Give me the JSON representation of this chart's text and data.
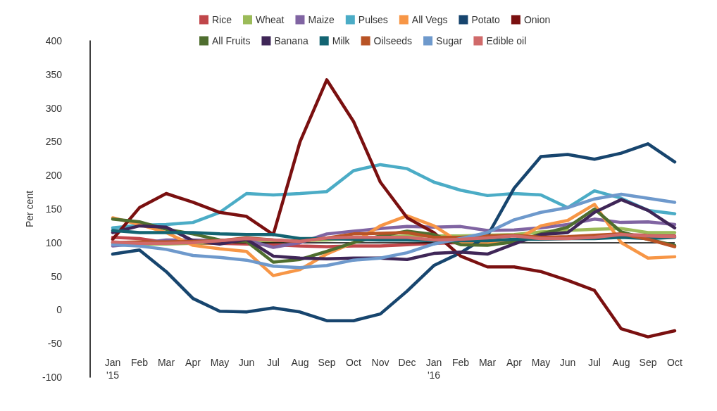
{
  "chart_data": {
    "type": "line",
    "ylabel": "Per cent",
    "categories": [
      "Jan\n'15",
      "Feb",
      "Mar",
      "Apr",
      "May",
      "Jun",
      "Jul",
      "Aug",
      "Sep",
      "Oct",
      "Nov",
      "Dec",
      "Jan\n'16",
      "Feb",
      "Mar",
      "Apr",
      "May",
      "Jun",
      "Jul",
      "Aug",
      "Sep",
      "Oct"
    ],
    "ylim": [
      -100,
      400
    ],
    "yticks": [
      -100,
      -50,
      0,
      50,
      100,
      150,
      200,
      250,
      300,
      350,
      400
    ],
    "grid": false,
    "legend": "top",
    "marker": "none",
    "line_style": "solid",
    "ref_lines": [
      {
        "axis": "y",
        "value": 100,
        "color": "#000000"
      }
    ],
    "series": [
      {
        "name": "Rice",
        "color": "#c0464a",
        "values": [
          108,
          106,
          100,
          99,
          99,
          98,
          97,
          95,
          94,
          95,
          95,
          97,
          99,
          100,
          102,
          104,
          106,
          108,
          110,
          112,
          111,
          110
        ]
      },
      {
        "name": "Wheat",
        "color": "#9bbb59",
        "values": [
          100,
          98,
          98,
          99,
          100,
          102,
          102,
          103,
          104,
          107,
          108,
          110,
          110,
          110,
          111,
          112,
          116,
          118,
          120,
          121,
          115,
          115
        ]
      },
      {
        "name": "Maize",
        "color": "#8064a2",
        "values": [
          95,
          99,
          104,
          104,
          103,
          104,
          93,
          100,
          113,
          117,
          121,
          124,
          123,
          124,
          118,
          119,
          122,
          127,
          135,
          130,
          131,
          127
        ]
      },
      {
        "name": "Pulses",
        "color": "#4bacc6",
        "values": [
          122,
          126,
          127,
          130,
          145,
          173,
          171,
          173,
          176,
          207,
          216,
          210,
          190,
          178,
          170,
          173,
          171,
          152,
          177,
          166,
          148,
          143
        ]
      },
      {
        "name": "All Vegs",
        "color": "#f79646",
        "values": [
          137,
          127,
          115,
          96,
          91,
          87,
          51,
          60,
          83,
          100,
          125,
          140,
          125,
          100,
          100,
          103,
          125,
          133,
          157,
          100,
          77,
          79
        ]
      },
      {
        "name": "Potato",
        "color": "#17456e",
        "values": [
          83,
          89,
          57,
          17,
          -2,
          -3,
          3,
          -3,
          -16,
          -16,
          -6,
          28,
          66,
          85,
          110,
          181,
          228,
          231,
          224,
          233,
          247,
          220
        ]
      },
      {
        "name": "Onion",
        "color": "#7a1010",
        "values": [
          105,
          152,
          173,
          160,
          145,
          139,
          112,
          250,
          342,
          280,
          190,
          137,
          115,
          80,
          64,
          64,
          57,
          44,
          29,
          -28,
          -40,
          -31
        ]
      },
      {
        "name": "All Fruits",
        "color": "#4f6e2f",
        "values": [
          135,
          131,
          120,
          113,
          104,
          102,
          71,
          75,
          87,
          100,
          110,
          117,
          112,
          97,
          96,
          101,
          113,
          123,
          150,
          116,
          105,
          96
        ]
      },
      {
        "name": "Banana",
        "color": "#3f2657",
        "values": [
          115,
          125,
          123,
          103,
          98,
          105,
          80,
          77,
          76,
          77,
          77,
          75,
          84,
          86,
          83,
          98,
          112,
          115,
          145,
          164,
          148,
          122
        ]
      },
      {
        "name": "Milk",
        "color": "#136472",
        "values": [
          118,
          115,
          115,
          115,
          113,
          112,
          112,
          106,
          106,
          105,
          104,
          104,
          103,
          103,
          103,
          105,
          105,
          106,
          106,
          108,
          106,
          108
        ]
      },
      {
        "name": "Oilseeds",
        "color": "#b85325",
        "values": [
          100,
          101,
          101,
          102,
          103,
          107,
          104,
          102,
          107,
          113,
          114,
          115,
          108,
          108,
          110,
          111,
          108,
          109,
          111,
          113,
          105,
          94
        ]
      },
      {
        "name": "Sugar",
        "color": "#6e99cc",
        "values": [
          97,
          95,
          90,
          81,
          78,
          74,
          65,
          63,
          66,
          74,
          77,
          85,
          98,
          106,
          115,
          134,
          145,
          152,
          165,
          172,
          166,
          160
        ]
      },
      {
        "name": "Edible oil",
        "color": "#d06a6a",
        "values": [
          101,
          99,
          99,
          100,
          103,
          106,
          104,
          102,
          107,
          108,
          108,
          108,
          104,
          105,
          107,
          110,
          106,
          106,
          108,
          112,
          110,
          109
        ]
      }
    ]
  }
}
